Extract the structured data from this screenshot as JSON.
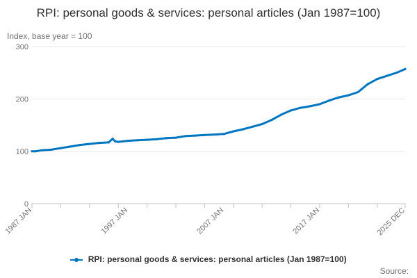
{
  "title": "RPI: personal goods & services: personal articles (Jan 1987=100)",
  "ylabel": "Index, base year = 100",
  "source_label": "Source:",
  "colors": {
    "series": "#0076c0",
    "grid": "#e6e6e6",
    "axis": "#c0c0c0",
    "tick_text": "#707071"
  },
  "chart_data": {
    "type": "line",
    "title": "RPI: personal goods & services: personal articles (Jan 1987=100)",
    "ylabel": "Index, base year = 100",
    "xlabel": "",
    "ylim": [
      0,
      300
    ],
    "yticks": [
      0,
      100,
      200,
      300
    ],
    "xlim": [
      "1987-01",
      "2025-12"
    ],
    "xticks": [
      "1987 JAN",
      "1997 JAN",
      "2007 JAN",
      "2017 JAN",
      "2025 DEC"
    ],
    "grid": true,
    "legend_position": "bottom",
    "series": [
      {
        "name": "RPI: personal goods & services: personal articles (Jan 1987=100)",
        "points": [
          [
            "1987-01",
            100
          ],
          [
            "1987-06",
            100
          ],
          [
            "1988-01",
            102
          ],
          [
            "1989-01",
            103
          ],
          [
            "1990-01",
            106
          ],
          [
            "1991-01",
            109
          ],
          [
            "1992-01",
            112
          ],
          [
            "1993-01",
            114
          ],
          [
            "1994-01",
            116
          ],
          [
            "1995-01",
            117
          ],
          [
            "1995-06",
            124
          ],
          [
            "1995-09",
            119
          ],
          [
            "1996-01",
            118
          ],
          [
            "1997-01",
            120
          ],
          [
            "1998-01",
            121
          ],
          [
            "1999-01",
            122
          ],
          [
            "2000-01",
            123
          ],
          [
            "2001-01",
            125
          ],
          [
            "2002-01",
            126
          ],
          [
            "2003-01",
            129
          ],
          [
            "2004-01",
            130
          ],
          [
            "2005-01",
            131
          ],
          [
            "2006-01",
            132
          ],
          [
            "2007-01",
            133
          ],
          [
            "2008-01",
            138
          ],
          [
            "2009-01",
            142
          ],
          [
            "2010-01",
            147
          ],
          [
            "2011-01",
            152
          ],
          [
            "2012-01",
            160
          ],
          [
            "2013-01",
            170
          ],
          [
            "2014-01",
            178
          ],
          [
            "2015-01",
            183
          ],
          [
            "2016-01",
            186
          ],
          [
            "2017-01",
            190
          ],
          [
            "2018-01",
            197
          ],
          [
            "2019-01",
            203
          ],
          [
            "2020-01",
            207
          ],
          [
            "2021-01",
            213
          ],
          [
            "2022-01",
            228
          ],
          [
            "2023-01",
            238
          ],
          [
            "2024-01",
            244
          ],
          [
            "2025-01",
            250
          ],
          [
            "2025-12",
            257
          ]
        ]
      }
    ]
  }
}
